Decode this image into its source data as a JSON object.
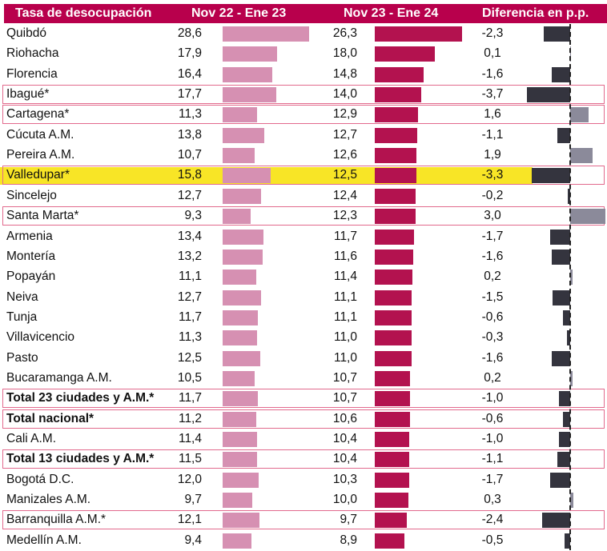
{
  "chart_data": {
    "type": "table",
    "title": "Tasa de desocupación",
    "columns": [
      "Tasa de desocupación",
      "Nov 22 - Ene 23",
      "Nov 23 - Ene 24",
      "Diferencia en p.p."
    ],
    "rows": [
      {
        "city": "Quibdó",
        "v1": "28,6",
        "v2": "26,3",
        "diff": "-2,3",
        "n1": 28.6,
        "n2": 26.3,
        "nd": -2.3
      },
      {
        "city": "Riohacha",
        "v1": "17,9",
        "v2": "18,0",
        "diff": "0,1",
        "n1": 17.9,
        "n2": 18.0,
        "nd": 0.1
      },
      {
        "city": "Florencia",
        "v1": "16,4",
        "v2": "14,8",
        "diff": "-1,6",
        "n1": 16.4,
        "n2": 14.8,
        "nd": -1.6
      },
      {
        "city": "Ibagué*",
        "v1": "17,7",
        "v2": "14,0",
        "diff": "-3,7",
        "n1": 17.7,
        "n2": 14.0,
        "nd": -3.7,
        "boxed": true
      },
      {
        "city": "Cartagena*",
        "v1": "11,3",
        "v2": "12,9",
        "diff": "1,6",
        "n1": 11.3,
        "n2": 12.9,
        "nd": 1.6,
        "boxed": true
      },
      {
        "city": "Cúcuta A.M.",
        "v1": "13,8",
        "v2": "12,7",
        "diff": "-1,1",
        "n1": 13.8,
        "n2": 12.7,
        "nd": -1.1
      },
      {
        "city": "Pereira A.M.",
        "v1": "10,7",
        "v2": "12,6",
        "diff": "1,9",
        "n1": 10.7,
        "n2": 12.6,
        "nd": 1.9
      },
      {
        "city": "Valledupar*",
        "v1": "15,8",
        "v2": "12,5",
        "diff": "-3,3",
        "n1": 15.8,
        "n2": 12.5,
        "nd": -3.3,
        "boxed": true,
        "highlight": true
      },
      {
        "city": "Sincelejo",
        "v1": "12,7",
        "v2": "12,4",
        "diff": "-0,2",
        "n1": 12.7,
        "n2": 12.4,
        "nd": -0.2
      },
      {
        "city": "Santa Marta*",
        "v1": "9,3",
        "v2": "12,3",
        "diff": "3,0",
        "n1": 9.3,
        "n2": 12.3,
        "nd": 3.0,
        "boxed": true
      },
      {
        "city": "Armenia",
        "v1": "13,4",
        "v2": "11,7",
        "diff": "-1,7",
        "n1": 13.4,
        "n2": 11.7,
        "nd": -1.7
      },
      {
        "city": "Montería",
        "v1": "13,2",
        "v2": "11,6",
        "diff": "-1,6",
        "n1": 13.2,
        "n2": 11.6,
        "nd": -1.6
      },
      {
        "city": "Popayán",
        "v1": "11,1",
        "v2": "11,4",
        "diff": "0,2",
        "n1": 11.1,
        "n2": 11.4,
        "nd": 0.2
      },
      {
        "city": "Neiva",
        "v1": "12,7",
        "v2": "11,1",
        "diff": "-1,5",
        "n1": 12.7,
        "n2": 11.1,
        "nd": -1.5
      },
      {
        "city": "Tunja",
        "v1": "11,7",
        "v2": "11,1",
        "diff": "-0,6",
        "n1": 11.7,
        "n2": 11.1,
        "nd": -0.6
      },
      {
        "city": "Villavicencio",
        "v1": "11,3",
        "v2": "11,0",
        "diff": "-0,3",
        "n1": 11.3,
        "n2": 11.0,
        "nd": -0.3
      },
      {
        "city": "Pasto",
        "v1": "12,5",
        "v2": "11,0",
        "diff": "-1,6",
        "n1": 12.5,
        "n2": 11.0,
        "nd": -1.6
      },
      {
        "city": "Bucaramanga A.M.",
        "v1": "10,5",
        "v2": "10,7",
        "diff": "0,2",
        "n1": 10.5,
        "n2": 10.7,
        "nd": 0.2
      },
      {
        "city": "Total 23 ciudades y A.M.*",
        "v1": "11,7",
        "v2": "10,7",
        "diff": "-1,0",
        "n1": 11.7,
        "n2": 10.7,
        "nd": -1.0,
        "boxed": true,
        "bold": true
      },
      {
        "city": "Total nacional*",
        "v1": "11,2",
        "v2": "10,6",
        "diff": "-0,6",
        "n1": 11.2,
        "n2": 10.6,
        "nd": -0.6,
        "boxed": true,
        "bold": true
      },
      {
        "city": "Cali A.M.",
        "v1": "11,4",
        "v2": "10,4",
        "diff": "-1,0",
        "n1": 11.4,
        "n2": 10.4,
        "nd": -1.0
      },
      {
        "city": "Total 13 ciudades y A.M.*",
        "v1": "11,5",
        "v2": "10,4",
        "diff": "-1,1",
        "n1": 11.5,
        "n2": 10.4,
        "nd": -1.1,
        "boxed": true,
        "bold": true
      },
      {
        "city": "Bogotá D.C.",
        "v1": "12,0",
        "v2": "10,3",
        "diff": "-1,7",
        "n1": 12.0,
        "n2": 10.3,
        "nd": -1.7
      },
      {
        "city": "Manizales A.M.",
        "v1": "9,7",
        "v2": "10,0",
        "diff": "0,3",
        "n1": 9.7,
        "n2": 10.0,
        "nd": 0.3
      },
      {
        "city": "Barranquilla A.M.*",
        "v1": "12,1",
        "v2": "9,7",
        "diff": "-2,4",
        "n1": 12.1,
        "n2": 9.7,
        "nd": -2.4,
        "boxed": true
      },
      {
        "city": "Medellín A.M.",
        "v1": "9,4",
        "v2": "8,9",
        "diff": "-0,5",
        "n1": 9.4,
        "n2": 8.9,
        "nd": -0.5
      }
    ],
    "colors": {
      "header": "#b8004c",
      "bar1": "#d690b2",
      "bar2": "#b3124f",
      "neg": "#34343e",
      "pos": "#8b8a9a",
      "highlight": "#f7e000",
      "box": "#e26a8d"
    }
  }
}
